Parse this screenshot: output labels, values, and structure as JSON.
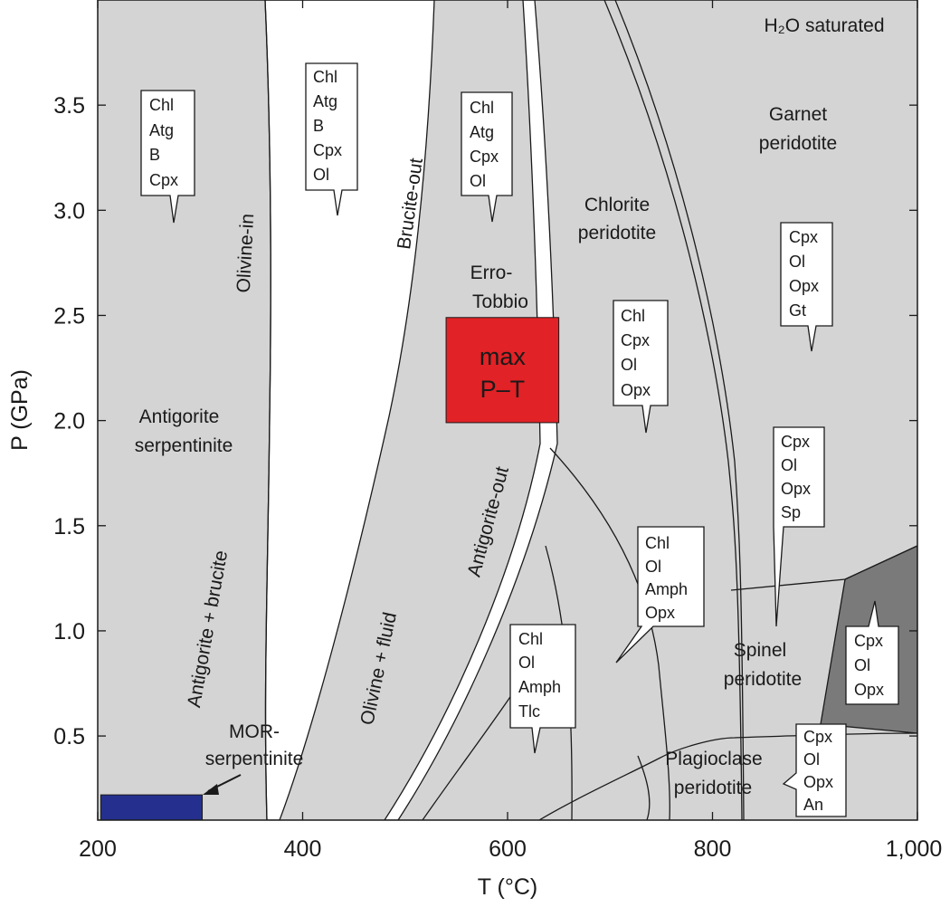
{
  "chart_data": {
    "type": "phase-diagram",
    "xlabel": "T (°C)",
    "ylabel": "P (GPa)",
    "xlim": [
      200,
      1000
    ],
    "ylim": [
      0.1,
      4.0
    ],
    "x_ticks": [
      200,
      400,
      600,
      800,
      1000
    ],
    "x_tick_labels": [
      "200",
      "400",
      "600",
      "800",
      "1,000"
    ],
    "y_ticks": [
      0.5,
      1.0,
      1.5,
      2.0,
      2.5,
      3.0,
      3.5
    ],
    "y_tick_labels": [
      "0.5",
      "1.0",
      "1.5",
      "2.0",
      "2.5",
      "3.0",
      "3.5"
    ],
    "colors": {
      "field_gray": "#d4d4d4",
      "dark_field": "#7a7a7a",
      "max_pt_box": "#e12226",
      "mor_box": "#25308e",
      "line": "#1a1a1a"
    },
    "regions": {
      "h2o_saturated": "H₂O saturated",
      "garnet_peridotite": [
        "Garnet",
        "peridotite"
      ],
      "chlorite_peridotite": [
        "Chlorite",
        "peridotite"
      ],
      "antigorite_serpentinite": [
        "Antigorite",
        "serpentinite"
      ],
      "erro_tobbio": [
        "Erro-",
        "Tobbio"
      ],
      "spinel_peridotite": [
        "Spinel",
        "peridotite"
      ],
      "plagioclase_peridotite": [
        "Plagioclase",
        "peridotite"
      ],
      "mor_serpentinite": [
        "MOR-",
        "serpentinite"
      ]
    },
    "curve_labels": {
      "olivine_in": "Olivine-in",
      "brucite_out": "Brucite-out",
      "antigorite_out": "Antigorite-out",
      "antigorite_brucite": "Antigorite + brucite",
      "olivine_fluid": "Olivine + fluid"
    },
    "max_pt": {
      "label_line1": "max",
      "label_line2": "P–T",
      "t_range": [
        540,
        650
      ],
      "p_range": [
        1.99,
        2.49
      ]
    },
    "mor_box": {
      "t_range": [
        203,
        302
      ],
      "p_range": [
        0.1,
        0.22
      ]
    },
    "assemblages": [
      {
        "id": "a1",
        "lines": [
          "Chl",
          "Atg",
          "B",
          "Cpx"
        ]
      },
      {
        "id": "a2",
        "lines": [
          "Chl",
          "Atg",
          "B",
          "Cpx",
          "Ol"
        ]
      },
      {
        "id": "a3",
        "lines": [
          "Chl",
          "Atg",
          "Cpx",
          "Ol"
        ]
      },
      {
        "id": "a4",
        "lines": [
          "Chl",
          "Cpx",
          "Ol",
          "Opx"
        ]
      },
      {
        "id": "a5",
        "lines": [
          "Cpx",
          "Ol",
          "Opx",
          "Gt"
        ]
      },
      {
        "id": "a6",
        "lines": [
          "Cpx",
          "Ol",
          "Opx",
          "Sp"
        ]
      },
      {
        "id": "a7",
        "lines": [
          "Chl",
          "Ol",
          "Amph",
          "Opx"
        ]
      },
      {
        "id": "a8",
        "lines": [
          "Chl",
          "Ol",
          "Amph",
          "Tlc"
        ]
      },
      {
        "id": "a9",
        "lines": [
          "Cpx",
          "Ol",
          "Opx"
        ]
      },
      {
        "id": "a10",
        "lines": [
          "Cpx",
          "Ol",
          "Opx",
          "An"
        ]
      }
    ]
  }
}
